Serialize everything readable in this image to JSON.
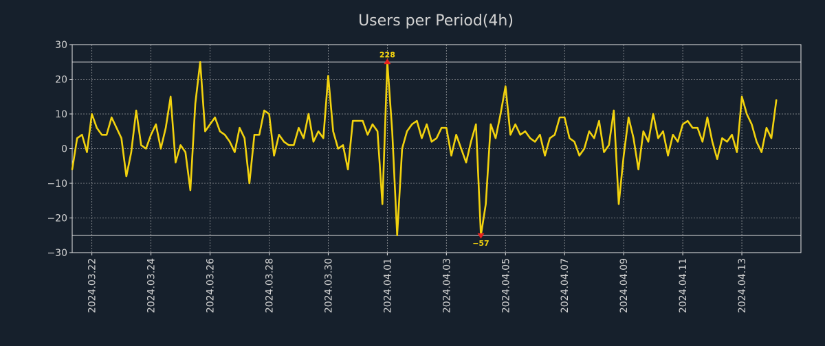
{
  "colors": {
    "background": "#16202c",
    "axis": "#e8e8e8",
    "text": "#d2d2d2",
    "line": "#f2d20e",
    "marker": "#e8211e",
    "grid": "#c8c8c8"
  },
  "chart_data": {
    "type": "line",
    "title": "Users per Period(4h)",
    "xlabel": "",
    "ylabel": "",
    "ylim": [
      -30,
      30
    ],
    "xlim": [
      0,
      148
    ],
    "grid": true,
    "legend": "none",
    "yticks": [
      -30,
      -20,
      -10,
      0,
      10,
      20,
      30
    ],
    "yticklabels": [
      "−30",
      "−20",
      "−10",
      "0",
      "10",
      "20",
      "30"
    ],
    "xticks": [
      {
        "pos": 4,
        "label": "2024.03.22"
      },
      {
        "pos": 16,
        "label": "2024.03.24"
      },
      {
        "pos": 28,
        "label": "2024.03.26"
      },
      {
        "pos": 40,
        "label": "2024.03.28"
      },
      {
        "pos": 52,
        "label": "2024.03.30"
      },
      {
        "pos": 64,
        "label": "2024.04.01"
      },
      {
        "pos": 76,
        "label": "2024.04.03"
      },
      {
        "pos": 88,
        "label": "2024.04.05"
      },
      {
        "pos": 100,
        "label": "2024.04.07"
      },
      {
        "pos": 112,
        "label": "2024.04.09"
      },
      {
        "pos": 124,
        "label": "2024.04.11"
      },
      {
        "pos": 136,
        "label": "2024.04.13"
      }
    ],
    "clip_lines": [
      25,
      -25
    ],
    "annotations": [
      {
        "type": "max",
        "x": 64,
        "y": 25,
        "label": "228"
      },
      {
        "type": "min",
        "x": 83,
        "y": -25,
        "label": "−57"
      }
    ],
    "series": [
      {
        "name": "Users",
        "values": [
          -6,
          3,
          4,
          -1,
          10,
          6,
          4,
          4,
          9,
          6,
          3,
          -8,
          -1,
          11,
          1,
          0,
          4,
          7,
          0,
          6,
          15,
          -4,
          1,
          -1,
          -12,
          13,
          25,
          5,
          7,
          9,
          5,
          4,
          2,
          -1,
          6,
          3,
          -10,
          4,
          4,
          11,
          10,
          -2,
          4,
          2,
          1,
          1,
          6,
          3,
          10,
          2,
          5,
          3,
          21,
          5,
          0,
          1,
          -6,
          8,
          8,
          8,
          4,
          7,
          5,
          -16,
          25,
          5,
          -25,
          0,
          5,
          7,
          8,
          3,
          7,
          2,
          3,
          6,
          6,
          -2,
          4,
          0,
          -4,
          2,
          7,
          -25,
          -16,
          7,
          3,
          10,
          18,
          4,
          7,
          4,
          5,
          3,
          2,
          4,
          -2,
          3,
          4,
          9,
          9,
          3,
          2,
          -2,
          0,
          5,
          3,
          8,
          -1,
          1,
          11,
          -16,
          -2,
          9,
          3,
          -6,
          5,
          2,
          10,
          3,
          5,
          -2,
          4,
          2,
          7,
          8,
          6,
          6,
          2,
          9,
          2,
          -3,
          3,
          2,
          4,
          -1,
          15,
          10,
          7,
          2,
          -1,
          6,
          3,
          14
        ]
      }
    ]
  }
}
